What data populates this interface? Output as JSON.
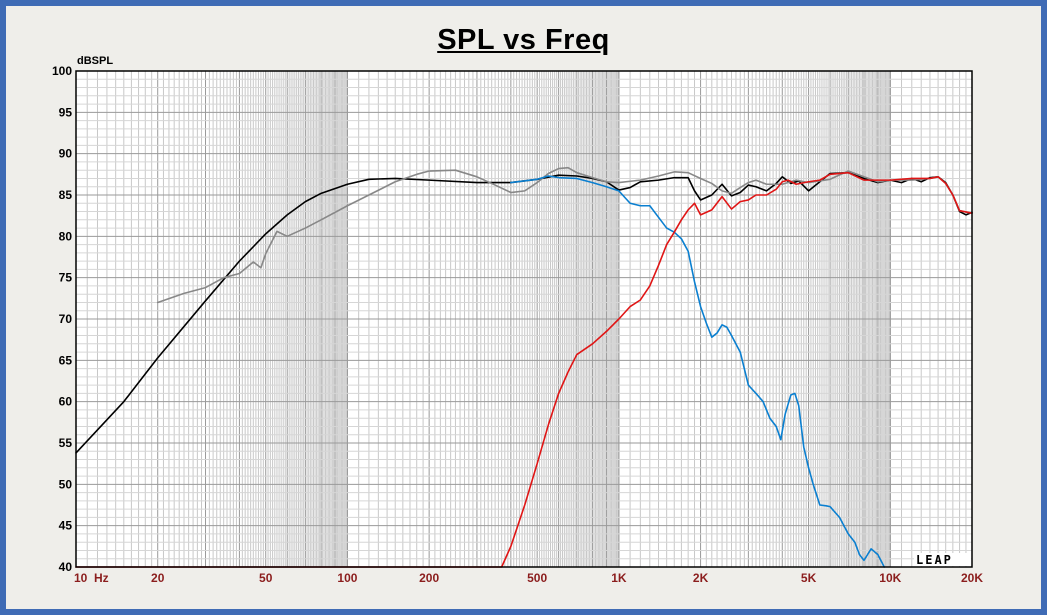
{
  "chart_data": {
    "type": "line",
    "title": "SPL vs Freq",
    "ylabel": "dBSPL",
    "xscale": "log",
    "xlim": [
      10,
      20000
    ],
    "ylim": [
      40,
      100
    ],
    "grid": true,
    "y_ticks": [
      100,
      95,
      90,
      85,
      80,
      75,
      70,
      65,
      60,
      55,
      50,
      45,
      40
    ],
    "x_ticks": [
      {
        "value": 10,
        "label": "10  Hz"
      },
      {
        "value": 20,
        "label": "20"
      },
      {
        "value": 50,
        "label": "50"
      },
      {
        "value": 100,
        "label": "100"
      },
      {
        "value": 200,
        "label": "200"
      },
      {
        "value": 500,
        "label": "500"
      },
      {
        "value": 1000,
        "label": "1K"
      },
      {
        "value": 2000,
        "label": "2K"
      },
      {
        "value": 5000,
        "label": "5K"
      },
      {
        "value": 10000,
        "label": "10K"
      },
      {
        "value": 20000,
        "label": "20K"
      }
    ],
    "watermark": "LEAP",
    "series": [
      {
        "color": "#000000",
        "points": [
          [
            10,
            53.8
          ],
          [
            15,
            60
          ],
          [
            20,
            65.3
          ],
          [
            30,
            72.2
          ],
          [
            40,
            77
          ],
          [
            50,
            80.3
          ],
          [
            60,
            82.6
          ],
          [
            70,
            84.2
          ],
          [
            80,
            85.2
          ],
          [
            100,
            86.3
          ],
          [
            120,
            86.9
          ],
          [
            150,
            87
          ],
          [
            200,
            86.8
          ],
          [
            300,
            86.5
          ],
          [
            400,
            86.5
          ],
          [
            500,
            86.9
          ],
          [
            600,
            87.4
          ],
          [
            700,
            87.3
          ],
          [
            800,
            87
          ],
          [
            900,
            86.6
          ],
          [
            1000,
            85.6
          ],
          [
            1100,
            85.9
          ],
          [
            1200,
            86.6
          ],
          [
            1400,
            86.8
          ],
          [
            1600,
            87.1
          ],
          [
            1800,
            87.1
          ],
          [
            1900,
            85.5
          ],
          [
            2000,
            84.4
          ],
          [
            2200,
            85
          ],
          [
            2400,
            86.3
          ],
          [
            2600,
            84.9
          ],
          [
            2800,
            85.3
          ],
          [
            3000,
            86.2
          ],
          [
            3200,
            86
          ],
          [
            3500,
            85.5
          ],
          [
            3800,
            86.4
          ],
          [
            4000,
            87.2
          ],
          [
            4300,
            86.4
          ],
          [
            4600,
            86.7
          ],
          [
            5000,
            85.5
          ],
          [
            5500,
            86.6
          ],
          [
            6000,
            87.6
          ],
          [
            7000,
            87.7
          ],
          [
            8000,
            87
          ],
          [
            9000,
            86.5
          ],
          [
            10000,
            86.8
          ],
          [
            11000,
            86.5
          ],
          [
            12000,
            87
          ],
          [
            13000,
            86.6
          ],
          [
            14000,
            87.1
          ],
          [
            15000,
            87.2
          ],
          [
            16000,
            86.5
          ],
          [
            17000,
            85
          ],
          [
            18000,
            83
          ],
          [
            19000,
            82.6
          ],
          [
            20000,
            82.9
          ]
        ]
      },
      {
        "color": "#888888",
        "points": [
          [
            20,
            72
          ],
          [
            25,
            73.1
          ],
          [
            30,
            73.8
          ],
          [
            35,
            75
          ],
          [
            40,
            75.5
          ],
          [
            45,
            76.9
          ],
          [
            48,
            76.2
          ],
          [
            50,
            77.9
          ],
          [
            55,
            80.6
          ],
          [
            60,
            80
          ],
          [
            70,
            81
          ],
          [
            80,
            82
          ],
          [
            100,
            83.7
          ],
          [
            120,
            85
          ],
          [
            150,
            86.6
          ],
          [
            180,
            87.5
          ],
          [
            200,
            87.9
          ],
          [
            250,
            88
          ],
          [
            300,
            87.2
          ],
          [
            350,
            86.2
          ],
          [
            400,
            85.3
          ],
          [
            450,
            85.5
          ],
          [
            500,
            86.5
          ],
          [
            550,
            87.6
          ],
          [
            600,
            88.2
          ],
          [
            650,
            88.3
          ],
          [
            700,
            87.7
          ],
          [
            800,
            87.1
          ],
          [
            900,
            86.6
          ],
          [
            1000,
            86.5
          ],
          [
            1200,
            86.8
          ],
          [
            1400,
            87.3
          ],
          [
            1600,
            87.8
          ],
          [
            1800,
            87.7
          ],
          [
            2000,
            87
          ],
          [
            2200,
            86.4
          ],
          [
            2400,
            85.5
          ],
          [
            2600,
            85.2
          ],
          [
            2800,
            85.9
          ],
          [
            3000,
            86.5
          ],
          [
            3200,
            86.8
          ],
          [
            3500,
            86.3
          ],
          [
            4000,
            86.3
          ],
          [
            4500,
            86.8
          ],
          [
            5000,
            86.5
          ],
          [
            6000,
            86.9
          ],
          [
            7000,
            87.9
          ],
          [
            8000,
            87.2
          ],
          [
            9000,
            86.6
          ],
          [
            10000,
            86.8
          ],
          [
            12000,
            86.8
          ],
          [
            14000,
            87
          ],
          [
            15000,
            87.2
          ],
          [
            16000,
            86.4
          ],
          [
            17000,
            85
          ],
          [
            18000,
            83.1
          ],
          [
            20000,
            82.8
          ]
        ]
      },
      {
        "color": "#0a7fd0",
        "points": [
          [
            400,
            86.5
          ],
          [
            500,
            86.9
          ],
          [
            550,
            87.3
          ],
          [
            600,
            87.1
          ],
          [
            700,
            87
          ],
          [
            800,
            86.5
          ],
          [
            900,
            86
          ],
          [
            1000,
            85.5
          ],
          [
            1100,
            84
          ],
          [
            1200,
            83.7
          ],
          [
            1300,
            83.7
          ],
          [
            1400,
            82.3
          ],
          [
            1500,
            81
          ],
          [
            1600,
            80.5
          ],
          [
            1700,
            79.7
          ],
          [
            1800,
            78.2
          ],
          [
            1900,
            74.5
          ],
          [
            2000,
            71.5
          ],
          [
            2100,
            69.5
          ],
          [
            2200,
            67.8
          ],
          [
            2300,
            68.3
          ],
          [
            2400,
            69.3
          ],
          [
            2500,
            69
          ],
          [
            2600,
            68
          ],
          [
            2800,
            66
          ],
          [
            3000,
            62
          ],
          [
            3200,
            61
          ],
          [
            3400,
            60
          ],
          [
            3600,
            58
          ],
          [
            3800,
            57
          ],
          [
            3950,
            55.4
          ],
          [
            4100,
            58.5
          ],
          [
            4300,
            60.8
          ],
          [
            4450,
            61
          ],
          [
            4600,
            59.5
          ],
          [
            4800,
            54.5
          ],
          [
            5000,
            52
          ],
          [
            5200,
            50
          ],
          [
            5500,
            47.5
          ],
          [
            5800,
            47.4
          ],
          [
            6000,
            47.3
          ],
          [
            6500,
            46
          ],
          [
            7000,
            44
          ],
          [
            7400,
            43
          ],
          [
            7700,
            41.5
          ],
          [
            8000,
            40.8
          ],
          [
            8500,
            42.2
          ],
          [
            9000,
            41.5
          ],
          [
            9500,
            40
          ]
        ]
      },
      {
        "color": "#e01515",
        "points": [
          [
            10,
            40
          ],
          [
            370,
            40
          ],
          [
            400,
            42.5
          ],
          [
            450,
            47.5
          ],
          [
            500,
            52.5
          ],
          [
            550,
            57.2
          ],
          [
            600,
            61
          ],
          [
            650,
            63.6
          ],
          [
            700,
            65.7
          ],
          [
            800,
            67
          ],
          [
            900,
            68.5
          ],
          [
            1000,
            70
          ],
          [
            1100,
            71.5
          ],
          [
            1200,
            72.3
          ],
          [
            1300,
            74
          ],
          [
            1400,
            76.5
          ],
          [
            1500,
            79
          ],
          [
            1600,
            80.5
          ],
          [
            1700,
            82
          ],
          [
            1800,
            83.2
          ],
          [
            1900,
            84
          ],
          [
            2000,
            82.6
          ],
          [
            2200,
            83.2
          ],
          [
            2400,
            84.8
          ],
          [
            2600,
            83.3
          ],
          [
            2800,
            84.2
          ],
          [
            3000,
            84.4
          ],
          [
            3200,
            85
          ],
          [
            3500,
            85
          ],
          [
            3800,
            85.7
          ],
          [
            4000,
            86.6
          ],
          [
            4200,
            86.8
          ],
          [
            4500,
            86.3
          ],
          [
            5000,
            86.6
          ],
          [
            5500,
            86.8
          ],
          [
            6000,
            87.5
          ],
          [
            7000,
            87.7
          ],
          [
            8000,
            86.8
          ],
          [
            10000,
            86.8
          ],
          [
            12000,
            87
          ],
          [
            14000,
            87
          ],
          [
            15000,
            87.2
          ],
          [
            16000,
            86.4
          ],
          [
            17000,
            85
          ],
          [
            18000,
            83.1
          ],
          [
            20000,
            82.8
          ]
        ]
      }
    ]
  }
}
